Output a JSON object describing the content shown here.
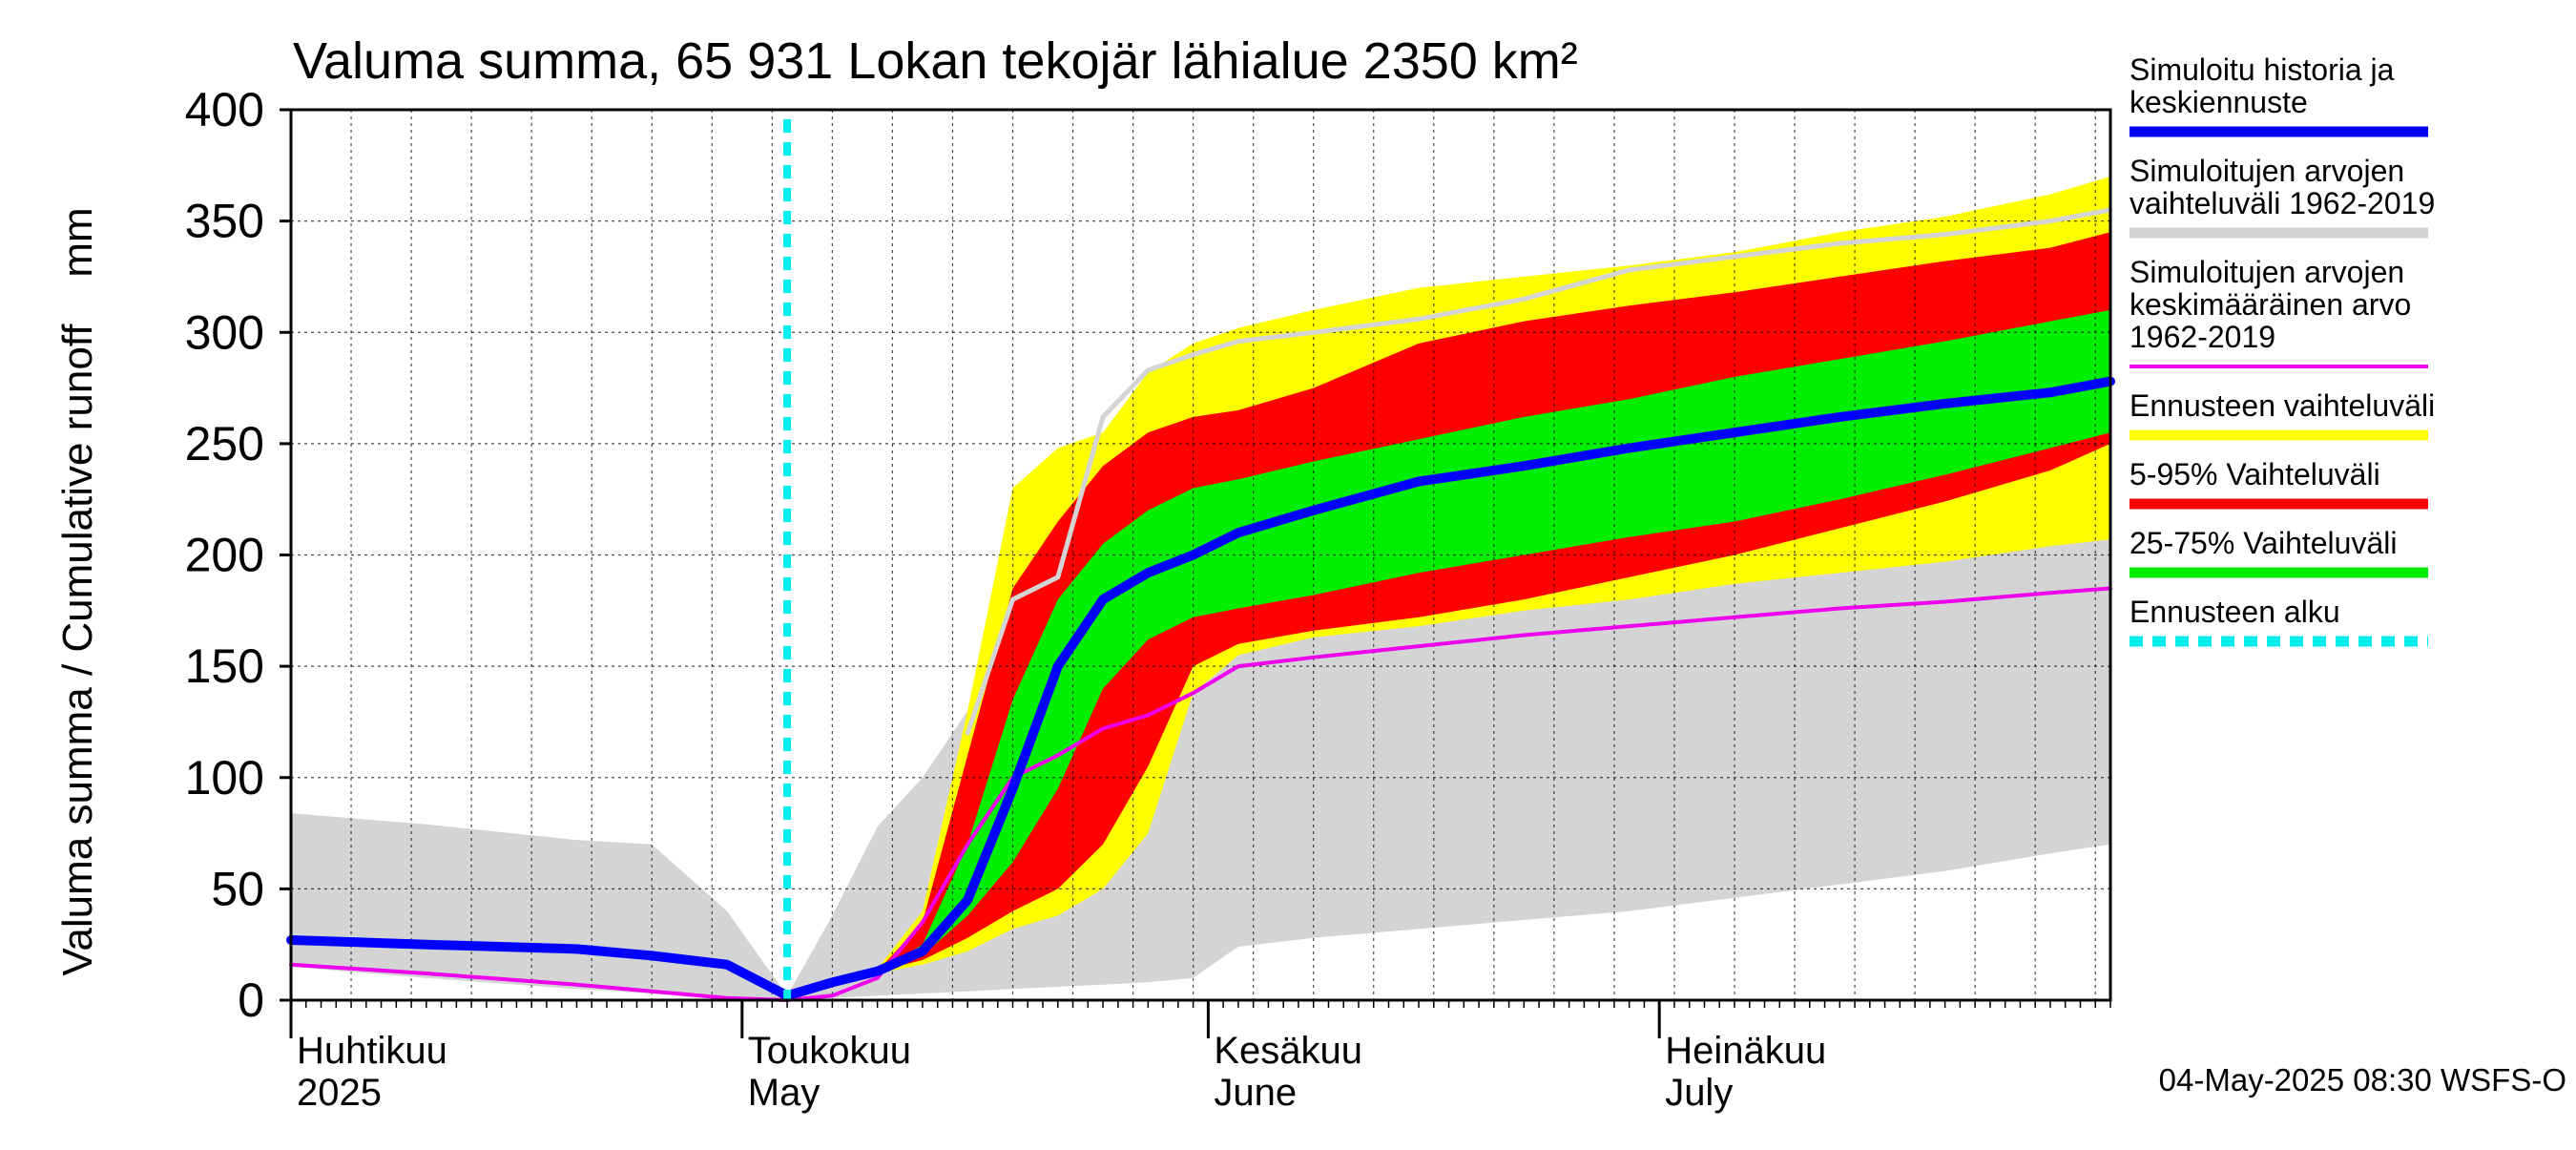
{
  "chart_data": {
    "type": "area",
    "title": "Valuma summa, 65 931 Lokan tekojär lähialue 2350 km²",
    "ylabel": "Valuma summa / Cumulative runoff    mm",
    "ylim": [
      0,
      400
    ],
    "yticks": [
      0,
      50,
      100,
      150,
      200,
      250,
      300,
      350,
      400
    ],
    "xlim": [
      "2025-04-01",
      "2025-07-31"
    ],
    "grid": true,
    "legend_position": "right",
    "footer": "04-May-2025 08:30 WSFS-O",
    "forecast_start": "2025-05-04",
    "month_labels": [
      {
        "line1": "Huhtikuu",
        "line2": "2025",
        "date": "2025-04-01"
      },
      {
        "line1": "Toukokuu",
        "line2": "May",
        "date": "2025-05-01"
      },
      {
        "line1": "Kesäkuu",
        "line2": "June",
        "date": "2025-06-01"
      },
      {
        "line1": "Heinäkuu",
        "line2": "July",
        "date": "2025-07-01"
      }
    ],
    "colors": {
      "history_range": "#d4d4d4",
      "forecast_range": "#ffff00",
      "p5_95": "#ff0000",
      "p25_75": "#00ee00",
      "simulated": "#0000ff",
      "mean": "#ee00ee",
      "forecast_start": "#00eeee",
      "max_history_line": "#d4d4d4"
    },
    "legend": [
      {
        "key": "simulated",
        "lines": [
          "Simuloitu historia ja",
          "keskiennuste"
        ],
        "style": "line"
      },
      {
        "key": "history_range",
        "lines": [
          "Simuloitujen arvojen",
          "vaihteluväli 1962-2019"
        ],
        "style": "line"
      },
      {
        "key": "mean",
        "lines": [
          "Simuloitujen arvojen",
          "keskimääräinen arvo",
          "   1962-2019"
        ],
        "style": "thin"
      },
      {
        "key": "forecast_range",
        "lines": [
          "Ennusteen vaihteluväli"
        ],
        "style": "line"
      },
      {
        "key": "p5_95",
        "lines": [
          "5-95% Vaihteluväli"
        ],
        "style": "line"
      },
      {
        "key": "p25_75",
        "lines": [
          "25-75% Vaihteluväli"
        ],
        "style": "line"
      },
      {
        "key": "forecast_start",
        "lines": [
          "Ennusteen alku"
        ],
        "style": "dashed"
      }
    ],
    "x": [
      "2025-04-01",
      "2025-04-10",
      "2025-04-20",
      "2025-04-25",
      "2025-04-30",
      "2025-05-04",
      "2025-05-07",
      "2025-05-10",
      "2025-05-13",
      "2025-05-16",
      "2025-05-19",
      "2025-05-22",
      "2025-05-25",
      "2025-05-28",
      "2025-05-31",
      "2025-06-03",
      "2025-06-08",
      "2025-06-15",
      "2025-06-22",
      "2025-06-29",
      "2025-07-06",
      "2025-07-13",
      "2025-07-20",
      "2025-07-27",
      "2025-07-31"
    ],
    "series": {
      "history_max": [
        84,
        79,
        72,
        70,
        40,
        2,
        38,
        78,
        100,
        130,
        165,
        190,
        205,
        222,
        248,
        262,
        274,
        282,
        292,
        305,
        318,
        330,
        340,
        350,
        355
      ],
      "history_min": [
        15,
        10,
        5,
        3,
        1,
        0,
        1,
        2,
        3,
        4,
        5,
        6,
        7,
        8,
        10,
        24,
        28,
        32,
        36,
        40,
        46,
        52,
        58,
        66,
        70
      ],
      "forecast_max": [
        null,
        null,
        null,
        null,
        null,
        2,
        8,
        14,
        40,
        130,
        230,
        248,
        255,
        282,
        295,
        302,
        310,
        320,
        325,
        330,
        336,
        345,
        352,
        362,
        370
      ],
      "forecast_min": [
        null,
        null,
        null,
        null,
        null,
        2,
        6,
        12,
        16,
        22,
        32,
        38,
        50,
        75,
        138,
        155,
        163,
        168,
        175,
        180,
        187,
        192,
        197,
        204,
        207
      ],
      "p95": [
        null,
        null,
        null,
        null,
        null,
        2,
        7,
        13,
        35,
        110,
        185,
        215,
        240,
        255,
        262,
        265,
        275,
        295,
        305,
        312,
        318,
        325,
        332,
        338,
        345
      ],
      "p5": [
        null,
        null,
        null,
        null,
        null,
        2,
        6,
        13,
        18,
        28,
        40,
        50,
        70,
        105,
        150,
        160,
        166,
        172,
        180,
        190,
        200,
        212,
        224,
        238,
        250
      ],
      "p75": [
        null,
        null,
        null,
        null,
        null,
        2,
        7,
        13,
        25,
        70,
        135,
        180,
        205,
        220,
        230,
        234,
        242,
        252,
        262,
        270,
        280,
        288,
        296,
        305,
        310
      ],
      "p25": [
        null,
        null,
        null,
        null,
        null,
        2,
        7,
        13,
        20,
        38,
        62,
        95,
        140,
        162,
        172,
        176,
        182,
        192,
        200,
        208,
        215,
        225,
        236,
        248,
        255
      ],
      "simulated": [
        27,
        25,
        23,
        20,
        16,
        2,
        8,
        13,
        22,
        45,
        95,
        150,
        180,
        192,
        200,
        210,
        220,
        233,
        240,
        248,
        255,
        262,
        268,
        273,
        278
      ],
      "mean": [
        16,
        12,
        7,
        4,
        1,
        0,
        2,
        10,
        35,
        70,
        100,
        110,
        122,
        128,
        138,
        150,
        154,
        159,
        164,
        168,
        172,
        176,
        179,
        183,
        185
      ],
      "history_max_line": [
        null,
        null,
        null,
        null,
        null,
        null,
        null,
        null,
        null,
        120,
        180,
        190,
        262,
        283,
        290,
        296,
        300,
        306,
        315,
        328,
        334,
        340,
        344,
        350,
        355
      ]
    }
  }
}
